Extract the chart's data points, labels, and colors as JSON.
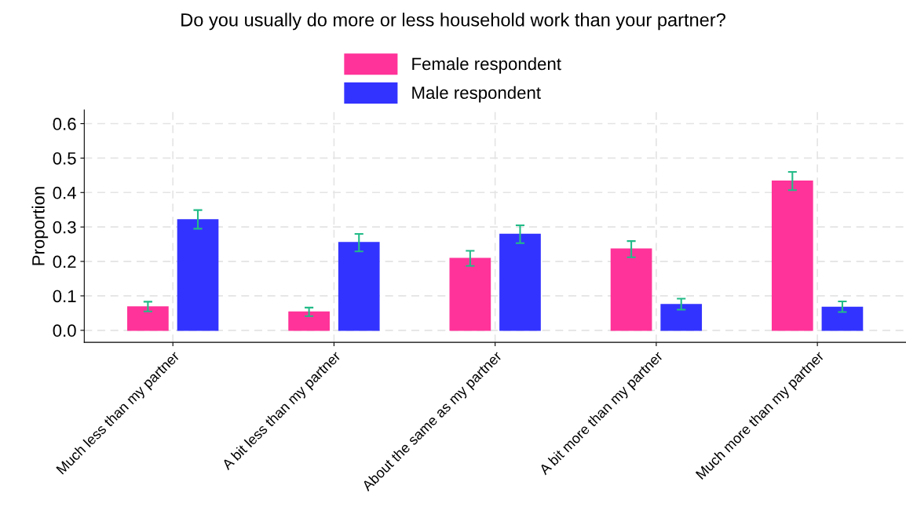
{
  "chart_data": {
    "type": "bar",
    "title": "Do you usually do more or less household work than your partner?",
    "ylabel": "Proportion",
    "categories": [
      "Much less than my partner",
      "A bit less than my partner",
      "About the same as my partner",
      "A bit more than my partner",
      "Much more than my partner"
    ],
    "series": [
      {
        "name": "Female respondent",
        "color": "#ff3399",
        "values": [
          0.068,
          0.053,
          0.209,
          0.236,
          0.433
        ],
        "errors": [
          [
            0.055,
            0.083
          ],
          [
            0.041,
            0.066
          ],
          [
            0.187,
            0.231
          ],
          [
            0.212,
            0.259
          ],
          [
            0.407,
            0.46
          ]
        ]
      },
      {
        "name": "Male respondent",
        "color": "#3333ff",
        "values": [
          0.321,
          0.255,
          0.279,
          0.075,
          0.067
        ],
        "errors": [
          [
            0.295,
            0.349
          ],
          [
            0.229,
            0.28
          ],
          [
            0.253,
            0.305
          ],
          [
            0.06,
            0.092
          ],
          [
            0.053,
            0.084
          ]
        ]
      }
    ],
    "ylim": [
      -0.035,
      0.64
    ],
    "yticks": [
      {
        "value": 0,
        "label": "0.0"
      },
      0.1,
      0.2,
      0.3,
      0.4,
      0.5,
      0.6
    ],
    "grid": true,
    "legend": "top"
  }
}
